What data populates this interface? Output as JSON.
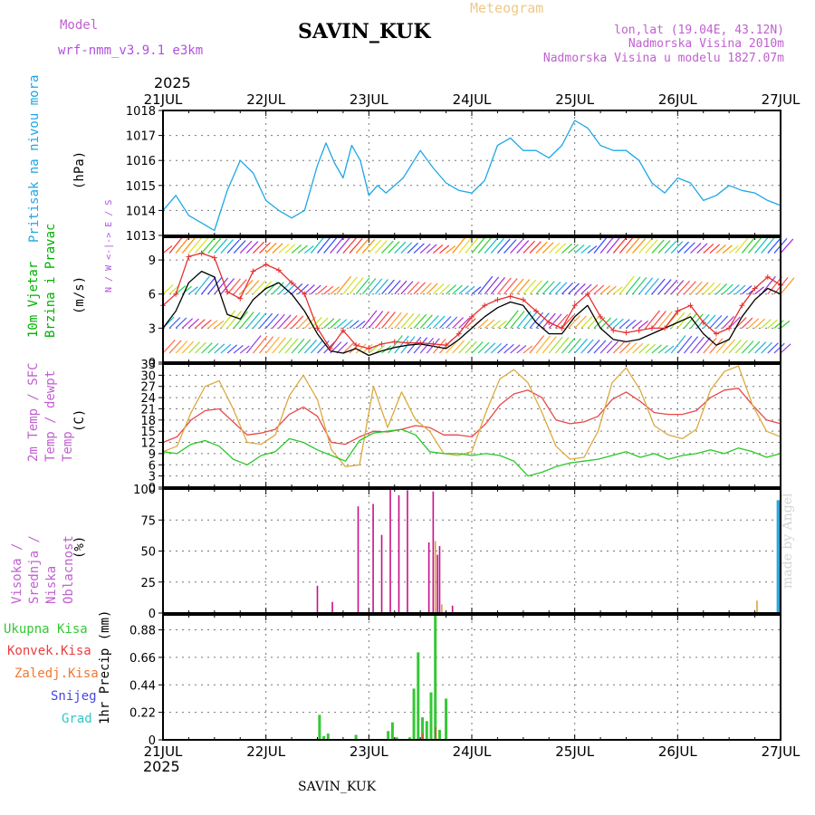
{
  "header": {
    "model_label": "Model",
    "model_name": "wrf-nmm_v3.9.1 e3km",
    "station": "SAVIN_KUK",
    "product": "Meteogram",
    "lonlat": "lon,lat (19.04E, 43.12N)",
    "elevation": "Nadmorska Visina 2010m",
    "model_elevation": "Nadmorska Visina u modelu 1827.07m",
    "year_top": "2025",
    "year_bottom": "2025",
    "footer_station": "SAVIN_KUK",
    "credit": "made by Angel"
  },
  "colors": {
    "pressure": "#1ea7e6",
    "wind_label": "#00b000",
    "wind_speed_red": "#e53030",
    "t2m": "#e84848",
    "sfc": "#dcaa40",
    "dew": "#28c828",
    "high_cloud": "#2aa6e0",
    "mid_cloud": "#d6a43a",
    "low_cloud": "#c8108c",
    "total_rain": "#34c834",
    "conv_rain": "#e84040",
    "frz_rain": "#f07830",
    "snow": "#4646e6",
    "hail": "#30c8c8",
    "model_label": "#c060d0",
    "product": "#f0c888"
  },
  "chart_data": [
    {
      "type": "line",
      "title": "Pritisak na nivou mora",
      "ylabel": "(hPa)",
      "ylim": [
        1013,
        1018
      ],
      "yticks": [
        "1013",
        "1014",
        "1015",
        "1016",
        "1017",
        "1018"
      ],
      "x_hours": [
        0,
        3,
        6,
        9,
        12,
        15,
        18,
        21,
        24,
        27,
        30,
        33,
        36,
        38,
        40,
        42,
        44,
        46,
        48,
        50,
        52,
        54,
        56,
        60,
        63,
        66,
        69,
        72,
        75,
        78,
        81,
        84,
        87,
        90,
        93,
        96,
        99,
        102,
        105,
        108,
        111,
        114,
        117,
        120,
        123,
        126,
        129,
        132,
        135,
        138,
        141,
        144
      ],
      "series": [
        {
          "name": "pressure",
          "values": [
            1014.0,
            1014.6,
            1013.8,
            1013.5,
            1013.2,
            1014.8,
            1016.0,
            1015.5,
            1014.4,
            1014.0,
            1013.7,
            1014.0,
            1015.8,
            1016.7,
            1015.9,
            1015.3,
            1016.6,
            1016.0,
            1014.6,
            1015.0,
            1014.7,
            1015.0,
            1015.3,
            1016.4,
            1015.7,
            1015.1,
            1014.8,
            1014.7,
            1015.2,
            1016.6,
            1016.9,
            1016.4,
            1016.4,
            1016.1,
            1016.6,
            1017.6,
            1017.3,
            1016.6,
            1016.4,
            1016.4,
            1016.0,
            1015.1,
            1014.7,
            1015.3,
            1015.1,
            1014.4,
            1014.6,
            1015.0,
            1014.8,
            1014.7,
            1014.4,
            1014.2
          ]
        }
      ]
    },
    {
      "type": "line",
      "title": "10m Vjetar Brzina i Pravac",
      "ylabel": "(m/s)",
      "ylim": [
        0,
        11
      ],
      "yticks": [
        "0",
        "3",
        "6",
        "9"
      ],
      "compass": "N / W <-|-> E / S",
      "x_hours": [
        0,
        3,
        6,
        9,
        12,
        15,
        18,
        21,
        24,
        27,
        30,
        33,
        36,
        39,
        42,
        45,
        48,
        51,
        54,
        57,
        60,
        63,
        66,
        69,
        72,
        75,
        78,
        81,
        84,
        87,
        90,
        93,
        96,
        99,
        102,
        105,
        108,
        111,
        114,
        117,
        120,
        123,
        126,
        129,
        132,
        135,
        138,
        141,
        144
      ],
      "series": [
        {
          "name": "speed_black",
          "values": [
            3.0,
            4.5,
            7.0,
            8.0,
            7.5,
            4.2,
            3.8,
            5.5,
            6.5,
            7.0,
            6.0,
            4.5,
            2.5,
            1.0,
            0.8,
            1.2,
            0.6,
            1.0,
            1.3,
            1.5,
            1.6,
            1.4,
            1.2,
            2.0,
            3.0,
            4.0,
            4.8,
            5.3,
            5.0,
            3.5,
            2.5,
            2.5,
            4.0,
            5.0,
            3.0,
            2.0,
            1.8,
            2.0,
            2.5,
            3.0,
            3.5,
            4.0,
            2.5,
            1.5,
            2.0,
            4.0,
            5.5,
            6.5,
            6.0
          ]
        },
        {
          "name": "speed_gust_red",
          "values": [
            5.0,
            6.0,
            9.3,
            9.6,
            9.2,
            6.2,
            5.6,
            8.0,
            8.6,
            8.1,
            7.0,
            6.0,
            3.0,
            1.2,
            2.8,
            1.5,
            1.2,
            1.6,
            1.8,
            1.7,
            1.7,
            1.6,
            1.5,
            2.5,
            4.0,
            5.0,
            5.5,
            5.8,
            5.5,
            4.5,
            3.5,
            3.0,
            5.0,
            6.0,
            4.0,
            2.8,
            2.6,
            2.8,
            3.0,
            3.0,
            4.5,
            5.0,
            3.5,
            2.5,
            3.0,
            5.0,
            6.5,
            7.5,
            6.8
          ]
        }
      ]
    },
    {
      "type": "line",
      "title": "2m Temp / SFC Temp / dewpt Temp",
      "ylabel": "(C)",
      "ylim": [
        0,
        33
      ],
      "yticks": [
        "0",
        "3",
        "6",
        "9",
        "12",
        "15",
        "18",
        "21",
        "24",
        "27",
        "30",
        "33"
      ],
      "x_hours": [
        0,
        3,
        6,
        9,
        12,
        15,
        18,
        21,
        24,
        27,
        30,
        33,
        36,
        39,
        42,
        45,
        48,
        51,
        54,
        57,
        60,
        63,
        66,
        69,
        72,
        75,
        78,
        81,
        84,
        87,
        90,
        93,
        96,
        99,
        102,
        105,
        108,
        111,
        114,
        117,
        120,
        123,
        126,
        129,
        132,
        135,
        138,
        141,
        144
      ],
      "series": [
        {
          "name": "t2m",
          "values": [
            12.0,
            13.5,
            18.0,
            20.5,
            21.0,
            17.5,
            14.0,
            14.5,
            15.5,
            19.5,
            21.5,
            19.0,
            12.0,
            11.5,
            13.5,
            15.0,
            14.8,
            15.5,
            16.5,
            16.0,
            14.0,
            14.0,
            13.5,
            17.0,
            22.0,
            25.0,
            26.0,
            24.0,
            18.0,
            17.0,
            17.5,
            19.0,
            23.5,
            25.5,
            23.0,
            20.0,
            19.5,
            19.5,
            20.5,
            24.0,
            26.0,
            26.5,
            22.0,
            18.0,
            17.0
          ]
        },
        {
          "name": "sfc",
          "values": [
            9.5,
            11.0,
            20.0,
            27.0,
            28.5,
            21.0,
            12.0,
            11.5,
            14.0,
            24.5,
            30.0,
            23.5,
            10.0,
            5.5,
            6.0,
            27.0,
            16.0,
            25.5,
            18.0,
            15.0,
            9.0,
            8.5,
            9.5,
            20.0,
            29.0,
            31.5,
            28.0,
            20.0,
            11.0,
            7.5,
            8.0,
            15.0,
            28.0,
            32.0,
            26.0,
            16.5,
            14.0,
            13.0,
            15.5,
            26.0,
            31.0,
            32.5,
            22.0,
            15.0,
            13.5
          ]
        },
        {
          "name": "dew",
          "values": [
            9.5,
            9.0,
            11.5,
            12.5,
            11.0,
            7.5,
            6.0,
            8.5,
            9.5,
            13.0,
            12.0,
            10.0,
            8.5,
            7.0,
            12.5,
            14.5,
            15.0,
            15.5,
            14.0,
            9.5,
            9.0,
            9.0,
            8.5,
            9.0,
            8.5,
            7.0,
            3.0,
            4.0,
            5.5,
            6.5,
            7.0,
            7.5,
            8.5,
            9.5,
            8.0,
            9.0,
            7.5,
            8.5,
            9.0,
            10.0,
            9.0,
            10.5,
            9.5,
            8.0,
            9.0
          ]
        }
      ]
    },
    {
      "type": "bar",
      "title": "Visoka / Srednja / Niska Oblacnost",
      "ylabel": "(%)",
      "ylim": [
        0,
        100
      ],
      "yticks": [
        "0",
        "25",
        "50",
        "75",
        "100"
      ],
      "series": [
        {
          "name": "low",
          "x_hours": [
            36.0,
            39.5,
            45.5,
            49.0,
            51.0,
            53.0,
            55.0,
            57.0,
            62.0,
            63.0,
            64.0,
            64.5,
            67.5
          ],
          "values": [
            22,
            9,
            86,
            88,
            63,
            100,
            95,
            99,
            57,
            98,
            47,
            54,
            6
          ]
        },
        {
          "name": "mid",
          "x_hours": [
            63.5,
            65.0,
            138.5
          ],
          "values": [
            58,
            7,
            10
          ]
        },
        {
          "name": "high",
          "x_hours": [
            143.5
          ],
          "values": [
            91
          ]
        }
      ]
    },
    {
      "type": "bar",
      "title": "1hr Precip",
      "ylabel": "1hr Precip (mm)",
      "ylim": [
        0,
        1.0
      ],
      "yticks": [
        "0",
        "0.22",
        "0.44",
        "0.66",
        "0.88"
      ],
      "legend": [
        "Ukupna Kisa",
        "Konvek.Kisa",
        "Zaledj.Kisa",
        "Snijeg",
        "Grad"
      ],
      "series": [
        {
          "name": "total",
          "x_hours": [
            36.5,
            37.5,
            38.5,
            45.0,
            52.5,
            53.5,
            54.5,
            57.5,
            58.5,
            59.5,
            60.5,
            61.5,
            62.5,
            63.5,
            64.5,
            66.0
          ],
          "values": [
            0.2,
            0.03,
            0.05,
            0.04,
            0.07,
            0.14,
            0.02,
            0.02,
            0.41,
            0.7,
            0.18,
            0.15,
            0.38,
            1.02,
            0.08,
            0.33
          ]
        },
        {
          "name": "convective",
          "x_hours": [
            60.6,
            63.6
          ],
          "values": [
            0.05,
            0.1
          ]
        }
      ]
    }
  ],
  "x_axis": {
    "ticks": [
      "21JUL",
      "22JUL",
      "23JUL",
      "24JUL",
      "25JUL",
      "26JUL",
      "27JUL"
    ],
    "range_hours": [
      0,
      144
    ]
  }
}
